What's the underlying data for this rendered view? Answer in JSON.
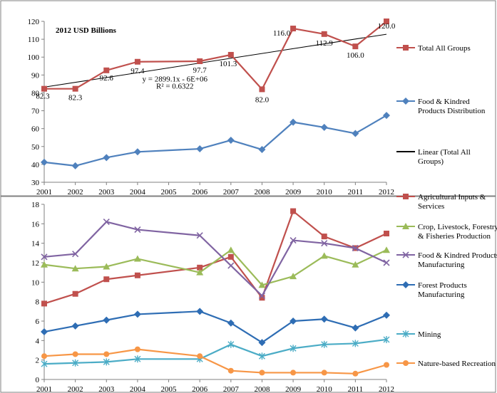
{
  "chart_data": [
    {
      "type": "line",
      "title": "2012 USD Billions",
      "x": [
        2001,
        2002,
        2003,
        2004,
        2005,
        2006,
        2007,
        2008,
        2009,
        2010,
        2011,
        2012
      ],
      "ylim": [
        30,
        120
      ],
      "yticks": [
        30,
        40,
        50,
        60,
        70,
        80,
        90,
        100,
        110,
        120
      ],
      "grid": false,
      "legend": "right",
      "series": [
        {
          "name": "Total All Groups",
          "color": "#C0504D",
          "marker": "square",
          "points": [
            {
              "x": 2001,
              "y": 82.3
            },
            {
              "x": 2002,
              "y": 82.3
            },
            {
              "x": 2003,
              "y": 92.6
            },
            {
              "x": 2004,
              "y": 97.4
            },
            {
              "x": 2006,
              "y": 97.7
            },
            {
              "x": 2007,
              "y": 101.3
            },
            {
              "x": 2008,
              "y": 82.0
            },
            {
              "x": 2009,
              "y": 116.0
            },
            {
              "x": 2010,
              "y": 112.9
            },
            {
              "x": 2011,
              "y": 106.0
            },
            {
              "x": 2012,
              "y": 120.0
            }
          ],
          "data_labels": [
            "82.3",
            "82.3",
            "92.6",
            "97.4",
            "97.7",
            "101.3",
            "82.0",
            "116.0",
            "112.9",
            "106.0",
            "120.0"
          ]
        },
        {
          "name": "Food & Kindred Products Distribution",
          "color": "#4F81BD",
          "marker": "diamond",
          "points": [
            {
              "x": 2001,
              "y": 41.2
            },
            {
              "x": 2002,
              "y": 39.2
            },
            {
              "x": 2003,
              "y": 43.8
            },
            {
              "x": 2004,
              "y": 47.0
            },
            {
              "x": 2006,
              "y": 48.7
            },
            {
              "x": 2007,
              "y": 53.5
            },
            {
              "x": 2008,
              "y": 48.3
            },
            {
              "x": 2009,
              "y": 63.6
            },
            {
              "x": 2010,
              "y": 60.7
            },
            {
              "x": 2011,
              "y": 57.3
            },
            {
              "x": 2012,
              "y": 67.4
            }
          ]
        }
      ],
      "trendline": {
        "name": "Linear (Total All Groups)",
        "color": "#000000",
        "equation": "y = 2899.1x - 6E+06",
        "r2": "R² = 0.6322",
        "y_start": 83.2,
        "y_end": 112.8
      }
    },
    {
      "type": "line",
      "x": [
        2001,
        2002,
        2003,
        2004,
        2005,
        2006,
        2007,
        2008,
        2009,
        2010,
        2011,
        2012
      ],
      "ylim": [
        0,
        18
      ],
      "yticks": [
        0,
        2,
        4,
        6,
        8,
        10,
        12,
        14,
        16,
        18
      ],
      "grid": false,
      "legend": "right",
      "series": [
        {
          "name": "Agricultural Inputs & Services",
          "color": "#C0504D",
          "marker": "square",
          "points": [
            {
              "x": 2001,
              "y": 7.8
            },
            {
              "x": 2002,
              "y": 8.8
            },
            {
              "x": 2003,
              "y": 10.3
            },
            {
              "x": 2004,
              "y": 10.7
            },
            {
              "x": 2006,
              "y": 11.5
            },
            {
              "x": 2007,
              "y": 12.6
            },
            {
              "x": 2008,
              "y": 8.4
            },
            {
              "x": 2009,
              "y": 17.3
            },
            {
              "x": 2010,
              "y": 14.7
            },
            {
              "x": 2011,
              "y": 13.5
            },
            {
              "x": 2012,
              "y": 15.0
            }
          ]
        },
        {
          "name": "Crop, Livestock, Forestry & Fisheries Production",
          "color": "#9BBB59",
          "marker": "triangle",
          "points": [
            {
              "x": 2001,
              "y": 11.8
            },
            {
              "x": 2002,
              "y": 11.4
            },
            {
              "x": 2003,
              "y": 11.6
            },
            {
              "x": 2004,
              "y": 12.4
            },
            {
              "x": 2006,
              "y": 11.0
            },
            {
              "x": 2007,
              "y": 13.3
            },
            {
              "x": 2008,
              "y": 9.7
            },
            {
              "x": 2009,
              "y": 10.6
            },
            {
              "x": 2010,
              "y": 12.7
            },
            {
              "x": 2011,
              "y": 11.8
            },
            {
              "x": 2012,
              "y": 13.3
            }
          ]
        },
        {
          "name": "Food & Kindred Products Manufacturing",
          "color": "#8064A2",
          "marker": "x",
          "points": [
            {
              "x": 2001,
              "y": 12.6
            },
            {
              "x": 2002,
              "y": 12.9
            },
            {
              "x": 2003,
              "y": 16.2
            },
            {
              "x": 2004,
              "y": 15.4
            },
            {
              "x": 2006,
              "y": 14.8
            },
            {
              "x": 2007,
              "y": 11.7
            },
            {
              "x": 2008,
              "y": 8.6
            },
            {
              "x": 2009,
              "y": 14.3
            },
            {
              "x": 2010,
              "y": 14.0
            },
            {
              "x": 2011,
              "y": 13.5
            },
            {
              "x": 2012,
              "y": 12.0
            }
          ]
        },
        {
          "name": "Forest Products Manufacturing",
          "color": "#2E6DB4",
          "marker": "diamond",
          "points": [
            {
              "x": 2001,
              "y": 4.9
            },
            {
              "x": 2002,
              "y": 5.5
            },
            {
              "x": 2003,
              "y": 6.1
            },
            {
              "x": 2004,
              "y": 6.7
            },
            {
              "x": 2006,
              "y": 7.0
            },
            {
              "x": 2007,
              "y": 5.8
            },
            {
              "x": 2008,
              "y": 3.8
            },
            {
              "x": 2009,
              "y": 6.0
            },
            {
              "x": 2010,
              "y": 6.2
            },
            {
              "x": 2011,
              "y": 5.3
            },
            {
              "x": 2012,
              "y": 6.6
            }
          ]
        },
        {
          "name": "Mining",
          "color": "#4BACC6",
          "marker": "star",
          "points": [
            {
              "x": 2001,
              "y": 1.6
            },
            {
              "x": 2002,
              "y": 1.7
            },
            {
              "x": 2003,
              "y": 1.8
            },
            {
              "x": 2004,
              "y": 2.1
            },
            {
              "x": 2006,
              "y": 2.1
            },
            {
              "x": 2007,
              "y": 3.6
            },
            {
              "x": 2008,
              "y": 2.4
            },
            {
              "x": 2009,
              "y": 3.2
            },
            {
              "x": 2010,
              "y": 3.6
            },
            {
              "x": 2011,
              "y": 3.7
            },
            {
              "x": 2012,
              "y": 4.1
            }
          ]
        },
        {
          "name": "Nature-based Recreation",
          "color": "#F79646",
          "marker": "circle",
          "points": [
            {
              "x": 2001,
              "y": 2.4
            },
            {
              "x": 2002,
              "y": 2.6
            },
            {
              "x": 2003,
              "y": 2.6
            },
            {
              "x": 2004,
              "y": 3.1
            },
            {
              "x": 2006,
              "y": 2.4
            },
            {
              "x": 2007,
              "y": 0.9
            },
            {
              "x": 2008,
              "y": 0.7
            },
            {
              "x": 2009,
              "y": 0.7
            },
            {
              "x": 2010,
              "y": 0.7
            },
            {
              "x": 2011,
              "y": 0.6
            },
            {
              "x": 2012,
              "y": 1.5
            }
          ]
        }
      ]
    }
  ]
}
